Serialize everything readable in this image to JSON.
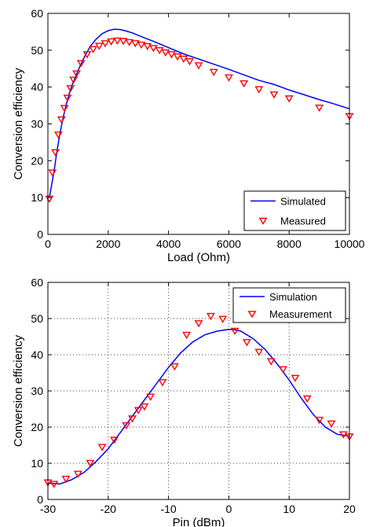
{
  "chart_data": [
    {
      "type": "line",
      "xlabel": "Load (Ohm)",
      "ylabel": "Conversion efficiency",
      "xlim": [
        0,
        10000
      ],
      "ylim": [
        0,
        60
      ],
      "xticks": [
        0,
        2000,
        4000,
        6000,
        8000,
        10000
      ],
      "yticks": [
        0,
        10,
        20,
        30,
        40,
        50,
        60
      ],
      "grid": false,
      "legend_position": "bottom-right",
      "series": [
        {
          "name": "Simulated",
          "kind": "line",
          "color": "#0000ff",
          "x": [
            50,
            200,
            300,
            400,
            500,
            600,
            700,
            800,
            900,
            1000,
            1200,
            1400,
            1600,
            1800,
            2000,
            2200,
            2400,
            2600,
            2800,
            3000,
            3500,
            4000,
            4500,
            5000,
            5500,
            6000,
            6500,
            7000,
            7500,
            8000,
            8500,
            9000,
            9500,
            10000
          ],
          "y": [
            10,
            17,
            22.5,
            27.5,
            31.5,
            35,
            38,
            40.5,
            42.5,
            44.5,
            48,
            51,
            53,
            54.5,
            55.3,
            55.7,
            55.6,
            55.2,
            54.7,
            54,
            52.4,
            50.7,
            49,
            47.6,
            46.2,
            44.8,
            43.3,
            41.8,
            40.7,
            39.2,
            37.9,
            36.6,
            35.4,
            34.1
          ]
        },
        {
          "name": "Measured",
          "kind": "marker",
          "color": "#ff0000",
          "x": [
            50,
            150,
            250,
            350,
            450,
            550,
            650,
            750,
            850,
            950,
            1100,
            1300,
            1500,
            1700,
            1900,
            2100,
            2300,
            2500,
            2700,
            2900,
            3100,
            3300,
            3500,
            3700,
            3900,
            4100,
            4300,
            4500,
            4700,
            5000,
            5500,
            6000,
            6500,
            7000,
            7500,
            8000,
            9000,
            10000
          ],
          "y": [
            9.7,
            16.8,
            22.3,
            27.1,
            31.2,
            34.3,
            37.1,
            39.7,
            42,
            43.7,
            46.5,
            48.9,
            50.3,
            51.2,
            51.9,
            52.4,
            52.6,
            52.5,
            52.2,
            51.9,
            51.5,
            51.1,
            50.6,
            50,
            49.4,
            48.9,
            48.3,
            47.7,
            47,
            45.9,
            44.1,
            42.6,
            41,
            39.4,
            38,
            36.9,
            34.4,
            32.1
          ]
        }
      ]
    },
    {
      "type": "line",
      "xlabel": "Pin (dBm)",
      "ylabel": "Conversion efficiency",
      "xlim": [
        -30,
        20
      ],
      "ylim": [
        0,
        60
      ],
      "xticks": [
        -30,
        -20,
        -10,
        0,
        10,
        20
      ],
      "yticks": [
        0,
        10,
        20,
        30,
        40,
        50,
        60
      ],
      "grid": true,
      "legend_position": "top-right",
      "series": [
        {
          "name": "Simulation",
          "kind": "line",
          "color": "#0000ff",
          "x": [
            -30,
            -28,
            -26,
            -24,
            -22,
            -20,
            -18,
            -16,
            -14,
            -12,
            -10,
            -8,
            -6,
            -4,
            -2,
            0,
            1,
            2,
            4,
            6,
            8,
            10,
            12,
            14,
            16,
            18,
            20
          ],
          "y": [
            4.5,
            4.3,
            5.5,
            7.5,
            10.5,
            14,
            18.5,
            23,
            27.5,
            32,
            36.5,
            40.5,
            43.5,
            45.5,
            46.5,
            47,
            46.9,
            46.5,
            44.5,
            41.5,
            37.5,
            33,
            28,
            23.5,
            20,
            18,
            17.5
          ]
        },
        {
          "name": "Measurement",
          "kind": "marker",
          "color": "#ff0000",
          "x": [
            -30,
            -29,
            -27,
            -25,
            -23,
            -21,
            -19,
            -17,
            -16,
            -15,
            -14,
            -13,
            -11,
            -9,
            -7,
            -5,
            -3,
            -1,
            1,
            3,
            5,
            7,
            9,
            11,
            13,
            15,
            17,
            19,
            20
          ],
          "y": [
            4.7,
            4.3,
            5.7,
            7.1,
            10.1,
            14.5,
            16.5,
            20.5,
            22.4,
            24.7,
            25.7,
            28.4,
            32.4,
            36.8,
            45.5,
            48.7,
            50.7,
            49.9,
            46.6,
            43.5,
            40.8,
            38.2,
            36,
            33.6,
            27.9,
            22,
            21,
            18,
            17.4
          ]
        }
      ]
    }
  ]
}
